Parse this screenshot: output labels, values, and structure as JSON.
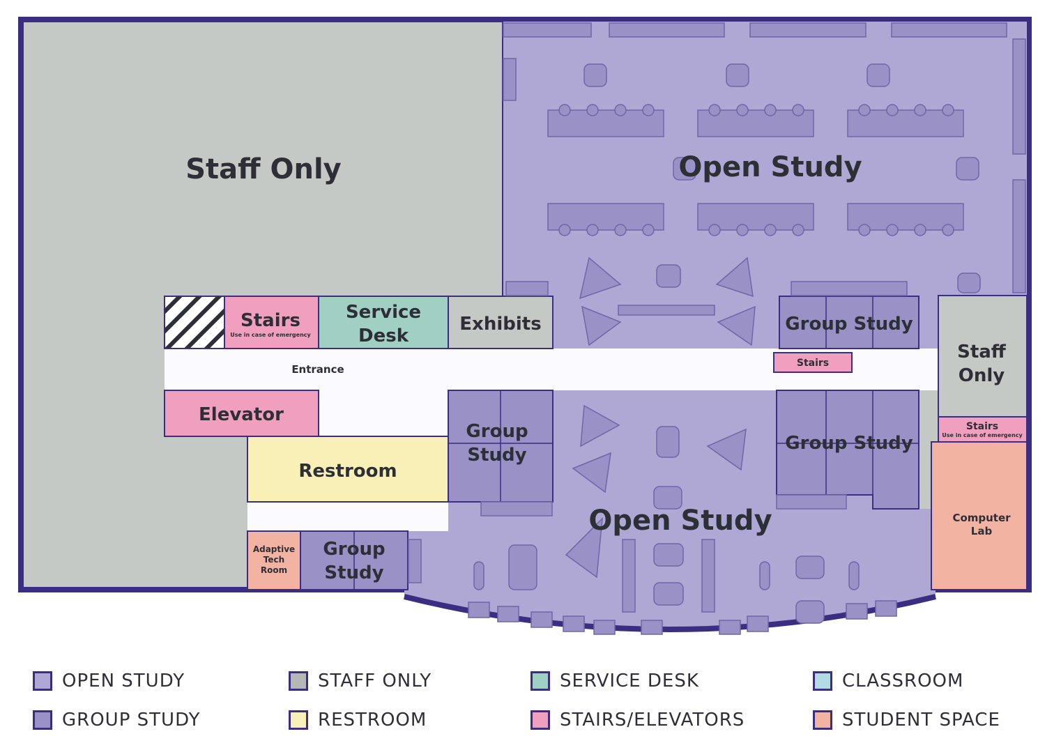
{
  "rooms": {
    "staff_only_main": "Staff Only",
    "open_study_north": "Open Study",
    "open_study_south": "Open Study",
    "stairs_west": "Stairs",
    "stairs_west_note": "Use in case of emergency",
    "service_desk_line1": "Service",
    "service_desk_line2": "Desk",
    "exhibits": "Exhibits",
    "group_study_ne": "Group Study",
    "stairs_center": "Stairs",
    "entrance": "Entrance",
    "elevator": "Elevator",
    "restroom": "Restroom",
    "group_study_mid_line1": "Group",
    "group_study_mid_line2": "Study",
    "group_study_se": "Group Study",
    "staff_only_east_line1": "Staff",
    "staff_only_east_line2": "Only",
    "stairs_east": "Stairs",
    "stairs_east_note": "Use in case of emergency",
    "computer_lab_line1": "Computer",
    "computer_lab_line2": "Lab",
    "adaptive_line1": "Adaptive",
    "adaptive_line2": "Tech",
    "adaptive_line3": "Room",
    "group_study_sw_line1": "Group",
    "group_study_sw_line2": "Study"
  },
  "legend": [
    {
      "label": "OPEN STUDY",
      "color": "#b0a8d4"
    },
    {
      "label": "STAFF ONLY",
      "color": "#b4b7b7"
    },
    {
      "label": "SERVICE DESK",
      "color": "#9fd0c3"
    },
    {
      "label": "CLASSROOM",
      "color": "#b3dbe6"
    },
    {
      "label": "GROUP STUDY",
      "color": "#9a91c6"
    },
    {
      "label": "RESTROOM",
      "color": "#f8f0b6"
    },
    {
      "label": "STAIRS/ELEVATORS",
      "color": "#f09fbf"
    },
    {
      "label": "STUDENT SPACE",
      "color": "#f3b3a3"
    }
  ],
  "colors": {
    "wall": "#3a2d82",
    "staff": "#c4c9c6",
    "open_study": "#b0a8d4",
    "group_study": "#9a91c6",
    "furniture": "#9a91c6",
    "service_desk": "#9fd0c3",
    "restroom": "#f8f0b6",
    "stairs": "#f09fbf",
    "student_space": "#f3b3a3",
    "corridor": "#fbfaff"
  }
}
